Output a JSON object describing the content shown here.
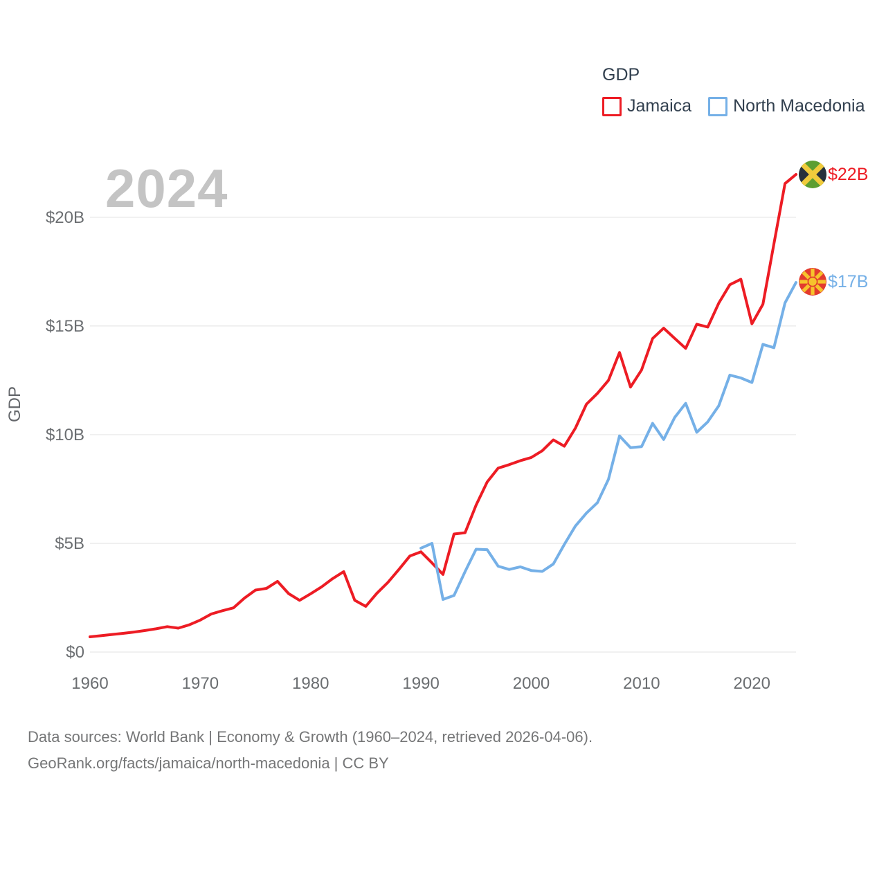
{
  "watermark": "2024",
  "y_axis_title": "GDP",
  "legend": {
    "title": "GDP",
    "items": [
      {
        "label": "Jamaica",
        "color_key": "jamaica"
      },
      {
        "label": "North Macedonia",
        "color_key": "north_macedonia"
      }
    ]
  },
  "end_labels": {
    "jamaica": "$22B",
    "north_macedonia": "$17B"
  },
  "footer": {
    "line1": "Data sources: World Bank | Economy & Growth (1960–2024, retrieved 2026-04-06).",
    "line2": "GeoRank.org/facts/jamaica/north-macedonia | CC BY"
  },
  "colors": {
    "jamaica": "#ed1c24",
    "north_macedonia": "#75b0e7",
    "grid": "#ececec",
    "tick_text": "#6b6e71",
    "legend_text": "#32404f",
    "watermark": "#c4c4c4",
    "footer_text": "#757677"
  },
  "chart_data": {
    "type": "line",
    "title": "GDP",
    "ylabel": "GDP",
    "xlabel": "",
    "x_range": [
      1960,
      2024
    ],
    "ylim_billions": [
      0,
      22.5
    ],
    "grid": "horizontal-only",
    "legend_position": "top-right",
    "x_ticks": [
      "1960",
      "1970",
      "1980",
      "1990",
      "2000",
      "2010",
      "2020"
    ],
    "y_ticks": [
      {
        "value": 0,
        "label": "$0"
      },
      {
        "value": 5,
        "label": "$5B"
      },
      {
        "value": 10,
        "label": "$10B"
      },
      {
        "value": 15,
        "label": "$15B"
      },
      {
        "value": 20,
        "label": "$20B"
      }
    ],
    "units": "billions of current US$",
    "series": [
      {
        "name": "Jamaica",
        "color_key": "jamaica",
        "start_year": 1960,
        "end_value_label": "$22B",
        "values": [
          0.7,
          0.75,
          0.81,
          0.86,
          0.92,
          0.99,
          1.07,
          1.17,
          1.1,
          1.25,
          1.47,
          1.75,
          1.9,
          2.03,
          2.48,
          2.85,
          2.93,
          3.25,
          2.69,
          2.38,
          2.68,
          3.0,
          3.38,
          3.7,
          2.38,
          2.1,
          2.7,
          3.2,
          3.8,
          4.42,
          4.61,
          4.1,
          3.57,
          5.43,
          5.49,
          6.76,
          7.82,
          8.46,
          8.62,
          8.8,
          8.95,
          9.26,
          9.76,
          9.47,
          10.3,
          11.4,
          11.9,
          12.5,
          13.78,
          12.19,
          12.98,
          14.42,
          14.9,
          14.43,
          13.97,
          15.08,
          14.95,
          16.05,
          16.9,
          17.15,
          15.1,
          16.0,
          18.78,
          21.55,
          21.97
        ]
      },
      {
        "name": "North Macedonia",
        "color_key": "north_macedonia",
        "start_year": 1990,
        "end_value_label": "$17B",
        "values": [
          4.78,
          5.0,
          2.42,
          2.6,
          3.7,
          4.73,
          4.71,
          3.95,
          3.8,
          3.92,
          3.75,
          3.71,
          4.05,
          4.95,
          5.8,
          6.39,
          6.87,
          7.95,
          9.94,
          9.4,
          9.45,
          10.52,
          9.78,
          10.79,
          11.44,
          10.11,
          10.59,
          11.33,
          12.74,
          12.61,
          12.4,
          14.15,
          14.0,
          16.06,
          17.0
        ]
      }
    ]
  }
}
